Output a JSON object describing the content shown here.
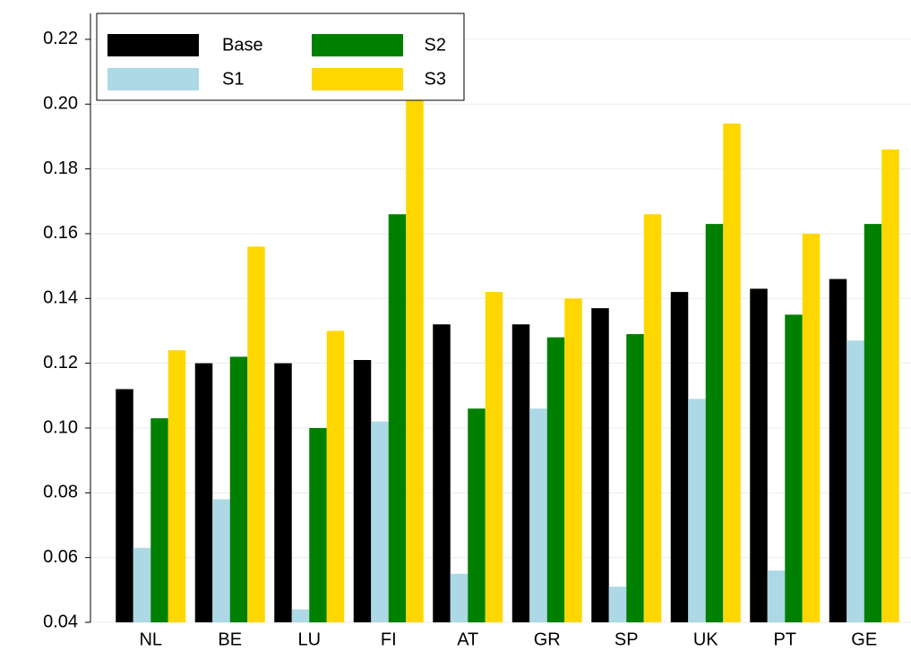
{
  "chart_data": {
    "type": "bar",
    "categories": [
      "NL",
      "BE",
      "LU",
      "FI",
      "AT",
      "GR",
      "SP",
      "UK",
      "PT",
      "GE"
    ],
    "series": [
      {
        "name": "Base",
        "color": "#000000",
        "values": [
          0.112,
          0.12,
          0.12,
          0.121,
          0.132,
          0.132,
          0.137,
          0.142,
          0.143,
          0.146
        ]
      },
      {
        "name": "S1",
        "color": "#add8e6",
        "values": [
          0.063,
          0.078,
          0.044,
          0.102,
          0.055,
          0.106,
          0.051,
          0.109,
          0.056,
          0.127
        ]
      },
      {
        "name": "S2",
        "color": "#008000",
        "values": [
          0.103,
          0.122,
          0.1,
          0.166,
          0.106,
          0.128,
          0.129,
          0.163,
          0.135,
          0.163
        ]
      },
      {
        "name": "S3",
        "color": "#ffd700",
        "values": [
          0.124,
          0.156,
          0.13,
          0.21,
          0.142,
          0.14,
          0.166,
          0.194,
          0.16,
          0.186
        ]
      }
    ],
    "ylim": [
      0.04,
      0.228
    ],
    "yticks": [
      0.04,
      0.06,
      0.08,
      {
        "value": 0.1,
        "label": "0.10"
      },
      0.12,
      0.14,
      0.16,
      0.18,
      {
        "value": 0.2,
        "label": "0.20"
      },
      0.22
    ],
    "grid": true,
    "legend": "upper left"
  }
}
